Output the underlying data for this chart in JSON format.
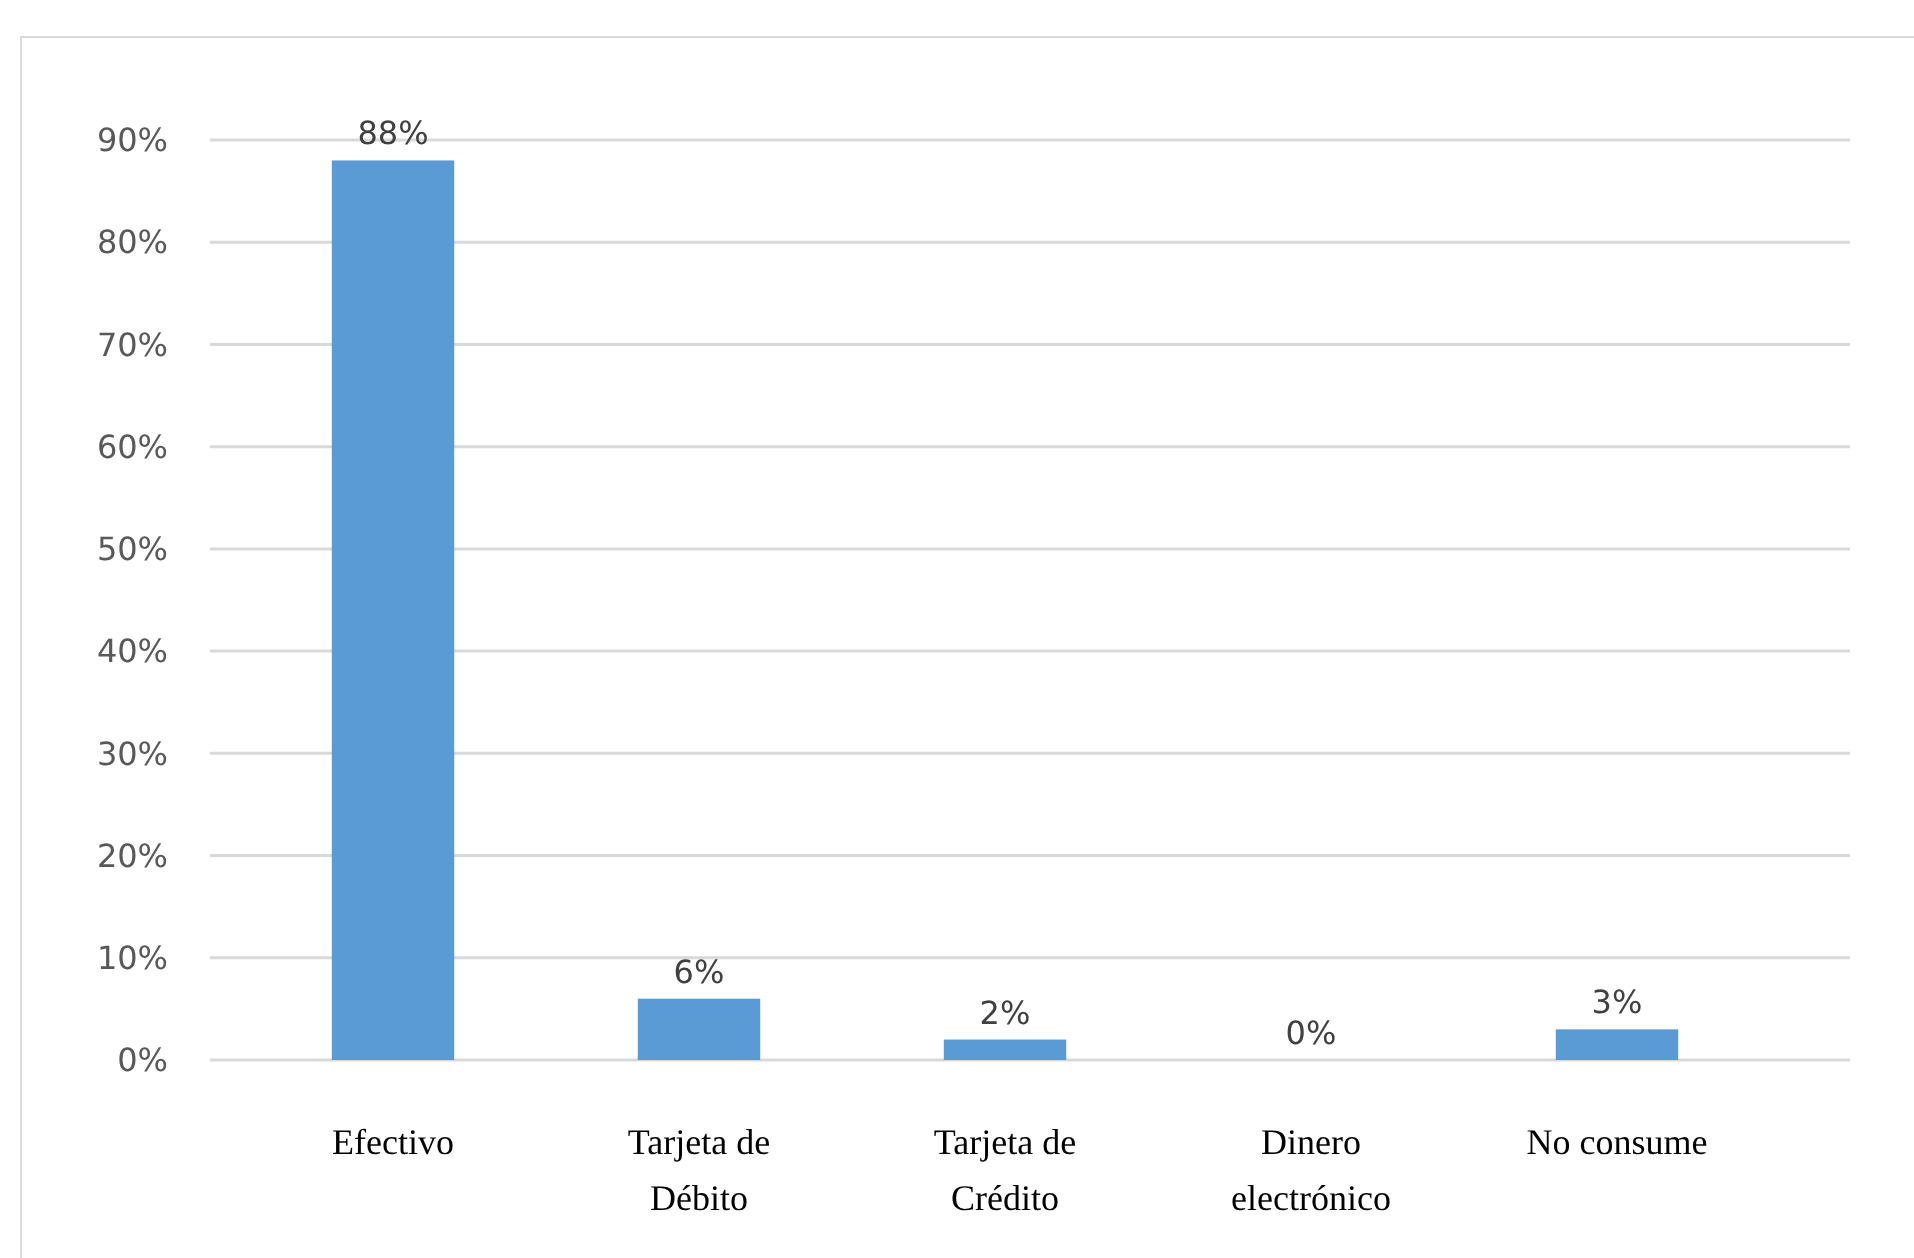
{
  "chart_data": {
    "type": "bar",
    "categories": [
      "Efectivo",
      "Tarjeta de Débito",
      "Tarjeta de Crédito",
      "Dinero electrónico",
      "No consume"
    ],
    "values": [
      88,
      6,
      2,
      0,
      3
    ],
    "color": "#5b9bd5",
    "value_labels": [
      "88%",
      "6%",
      "2%",
      "0%",
      "3%"
    ],
    "ylim": [
      0,
      90
    ],
    "yticks": [
      {
        "value": 0,
        "label": "0%"
      },
      {
        "value": 10,
        "label": "10%"
      },
      {
        "value": 20,
        "label": "20%"
      },
      {
        "value": 30,
        "label": "30%"
      },
      {
        "value": 40,
        "label": "40%"
      },
      {
        "value": 50,
        "label": "50%"
      },
      {
        "value": 60,
        "label": "60%"
      },
      {
        "value": 70,
        "label": "70%"
      },
      {
        "value": 80,
        "label": "80%"
      },
      {
        "value": 90,
        "label": "90%"
      }
    ],
    "grid": "y"
  }
}
